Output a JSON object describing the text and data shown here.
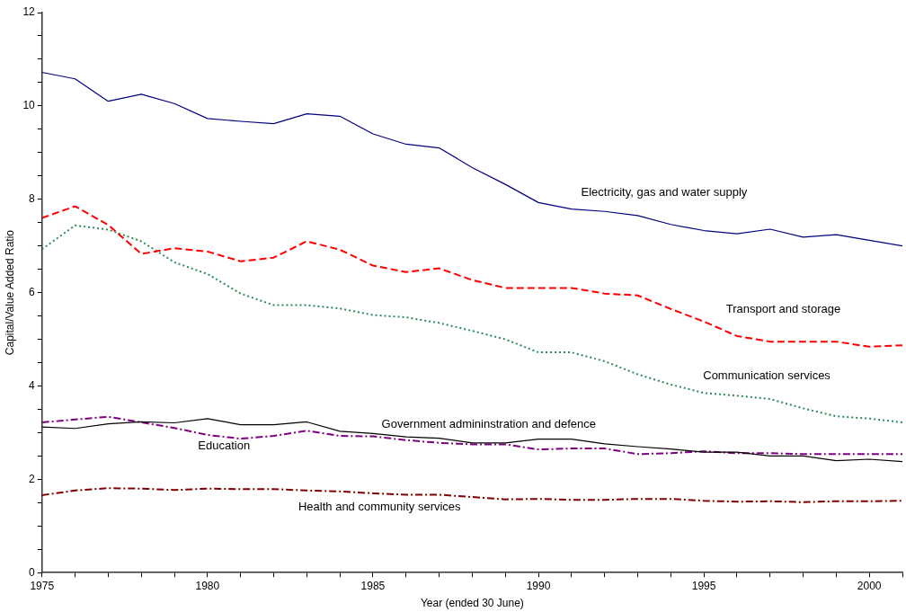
{
  "chart_data": {
    "type": "line",
    "xlabel": "Year (ended 30 June)",
    "ylabel": "Capital/Value Added Ratio",
    "x": [
      1975,
      1976,
      1977,
      1978,
      1979,
      1980,
      1981,
      1982,
      1983,
      1984,
      1985,
      1986,
      1987,
      1988,
      1989,
      1990,
      1991,
      1992,
      1993,
      1994,
      1995,
      1996,
      1997,
      1998,
      1999,
      2000,
      2001
    ],
    "series": [
      {
        "name": "Electricity, gas and water supply",
        "color": "#000080",
        "line_style": "solid",
        "values": [
          10.72,
          10.58,
          10.1,
          10.25,
          10.05,
          9.73,
          9.67,
          9.62,
          9.83,
          9.78,
          9.4,
          9.18,
          9.1,
          8.68,
          8.32,
          7.93,
          7.79,
          7.74,
          7.65,
          7.46,
          7.33,
          7.26,
          7.36,
          7.19,
          7.24,
          7.12,
          7.0
        ]
      },
      {
        "name": "Transport and storage",
        "color": "#ff0000",
        "line_style": "dashed",
        "values": [
          7.6,
          7.85,
          7.45,
          6.83,
          6.95,
          6.88,
          6.67,
          6.75,
          7.1,
          6.92,
          6.58,
          6.44,
          6.52,
          6.27,
          6.1,
          6.1,
          6.1,
          5.98,
          5.94,
          5.65,
          5.38,
          5.07,
          4.95,
          4.95,
          4.95,
          4.84,
          4.87
        ]
      },
      {
        "name": "Communication services",
        "color": "#2e8b57",
        "line_style": "dotted",
        "values": [
          6.93,
          7.44,
          7.35,
          7.1,
          6.65,
          6.4,
          5.98,
          5.73,
          5.73,
          5.66,
          5.52,
          5.47,
          5.35,
          5.18,
          5.0,
          4.72,
          4.72,
          4.53,
          4.25,
          4.03,
          3.85,
          3.79,
          3.72,
          3.52,
          3.35,
          3.3,
          3.22
        ]
      },
      {
        "name": "Government admininstration and defence",
        "color": "#000000",
        "line_style": "solid",
        "values": [
          3.12,
          3.09,
          3.19,
          3.23,
          3.21,
          3.3,
          3.17,
          3.17,
          3.23,
          3.03,
          2.98,
          2.91,
          2.88,
          2.78,
          2.78,
          2.86,
          2.86,
          2.76,
          2.7,
          2.65,
          2.58,
          2.58,
          2.5,
          2.5,
          2.4,
          2.43,
          2.38
        ]
      },
      {
        "name": "Education",
        "color": "#800080",
        "line_style": "dashdot",
        "values": [
          3.22,
          3.28,
          3.34,
          3.22,
          3.1,
          2.95,
          2.87,
          2.93,
          3.04,
          2.93,
          2.92,
          2.84,
          2.78,
          2.75,
          2.75,
          2.64,
          2.66,
          2.66,
          2.54,
          2.56,
          2.6,
          2.56,
          2.56,
          2.54,
          2.54,
          2.54,
          2.54
        ]
      },
      {
        "name": "Health and community services",
        "color": "#800000",
        "line_style": "dashdot",
        "values": [
          1.66,
          1.76,
          1.81,
          1.8,
          1.77,
          1.8,
          1.79,
          1.79,
          1.76,
          1.74,
          1.7,
          1.67,
          1.67,
          1.62,
          1.57,
          1.58,
          1.56,
          1.56,
          1.58,
          1.58,
          1.54,
          1.52,
          1.53,
          1.51,
          1.53,
          1.53,
          1.54
        ]
      }
    ],
    "xlim": [
      1975,
      2001
    ],
    "xticks": [
      1975,
      {
        "value": 1976,
        "label": null
      },
      {
        "value": 1977,
        "label": null
      },
      {
        "value": 1978,
        "label": null
      },
      {
        "value": 1979,
        "label": null
      },
      1980,
      {
        "value": 1981,
        "label": null
      },
      {
        "value": 1982,
        "label": null
      },
      {
        "value": 1983,
        "label": null
      },
      {
        "value": 1984,
        "label": null
      },
      1985,
      {
        "value": 1986,
        "label": null
      },
      {
        "value": 1987,
        "label": null
      },
      {
        "value": 1988,
        "label": null
      },
      {
        "value": 1989,
        "label": null
      },
      1990,
      {
        "value": 1991,
        "label": null
      },
      {
        "value": 1992,
        "label": null
      },
      {
        "value": 1993,
        "label": null
      },
      {
        "value": 1994,
        "label": null
      },
      1995,
      {
        "value": 1996,
        "label": null
      },
      {
        "value": 1997,
        "label": null
      },
      {
        "value": 1998,
        "label": null
      },
      {
        "value": 1999,
        "label": null
      },
      2000,
      {
        "value": 2001,
        "label": null
      }
    ],
    "ylim": [
      0,
      12
    ],
    "yticks": [
      0,
      {
        "value": 0.5,
        "label": null
      },
      {
        "value": 1,
        "label": null
      },
      {
        "value": 1.5,
        "label": null
      },
      2,
      {
        "value": 2.5,
        "label": null
      },
      {
        "value": 3,
        "label": null
      },
      {
        "value": 3.5,
        "label": null
      },
      4,
      {
        "value": 4.5,
        "label": null
      },
      {
        "value": 5,
        "label": null
      },
      {
        "value": 5.5,
        "label": null
      },
      6,
      {
        "value": 6.5,
        "label": null
      },
      {
        "value": 7,
        "label": null
      },
      {
        "value": 7.5,
        "label": null
      },
      8,
      {
        "value": 8.5,
        "label": null
      },
      {
        "value": 9,
        "label": null
      },
      {
        "value": 9.5,
        "label": null
      },
      10,
      {
        "value": 10.5,
        "label": null
      },
      {
        "value": 11,
        "label": null
      },
      {
        "value": 11.5,
        "label": null
      },
      12
    ],
    "grid": false,
    "legend": false,
    "marker": "none"
  }
}
